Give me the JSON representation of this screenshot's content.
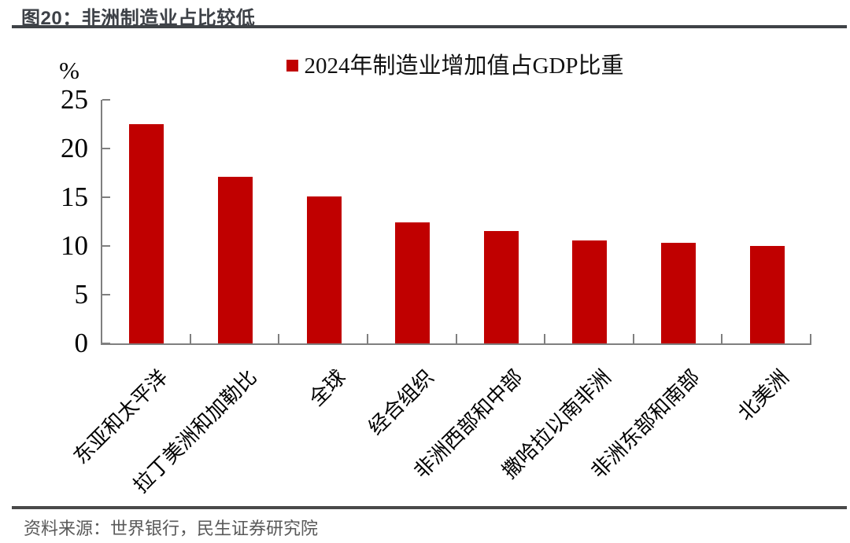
{
  "figure": {
    "title": "图20：非洲制造业占比较低",
    "source": "资料来源：世界银行，民生证券研究院"
  },
  "chart_data": {
    "type": "bar",
    "title": "图20：非洲制造业占比较低",
    "legend_label": "2024年制造业增加值占GDP比重",
    "legend_position": "top-center",
    "unit_label": "%",
    "categories": [
      "东亚和太平洋",
      "拉丁美洲和加勒比",
      "全球",
      "经合组织",
      "非洲西部和中部",
      "撒哈拉以南非洲",
      "非洲东部和南部",
      "北美洲"
    ],
    "values": [
      22.5,
      17.1,
      15.1,
      12.4,
      11.5,
      10.6,
      10.3,
      10.0
    ],
    "xlabel": "",
    "ylabel": "%",
    "ylim": [
      0,
      25
    ],
    "yticks": [
      0,
      5,
      10,
      15,
      20,
      25
    ],
    "grid": false,
    "bar_color": "#C00000",
    "axis_color": "#7F7F7F"
  },
  "colors": {
    "bar": "#C00000",
    "title_text": "#3D4147",
    "divider": "#3F4347",
    "source_text": "#595959",
    "axis": "#7F7F7F",
    "tick_text": "#000000"
  }
}
